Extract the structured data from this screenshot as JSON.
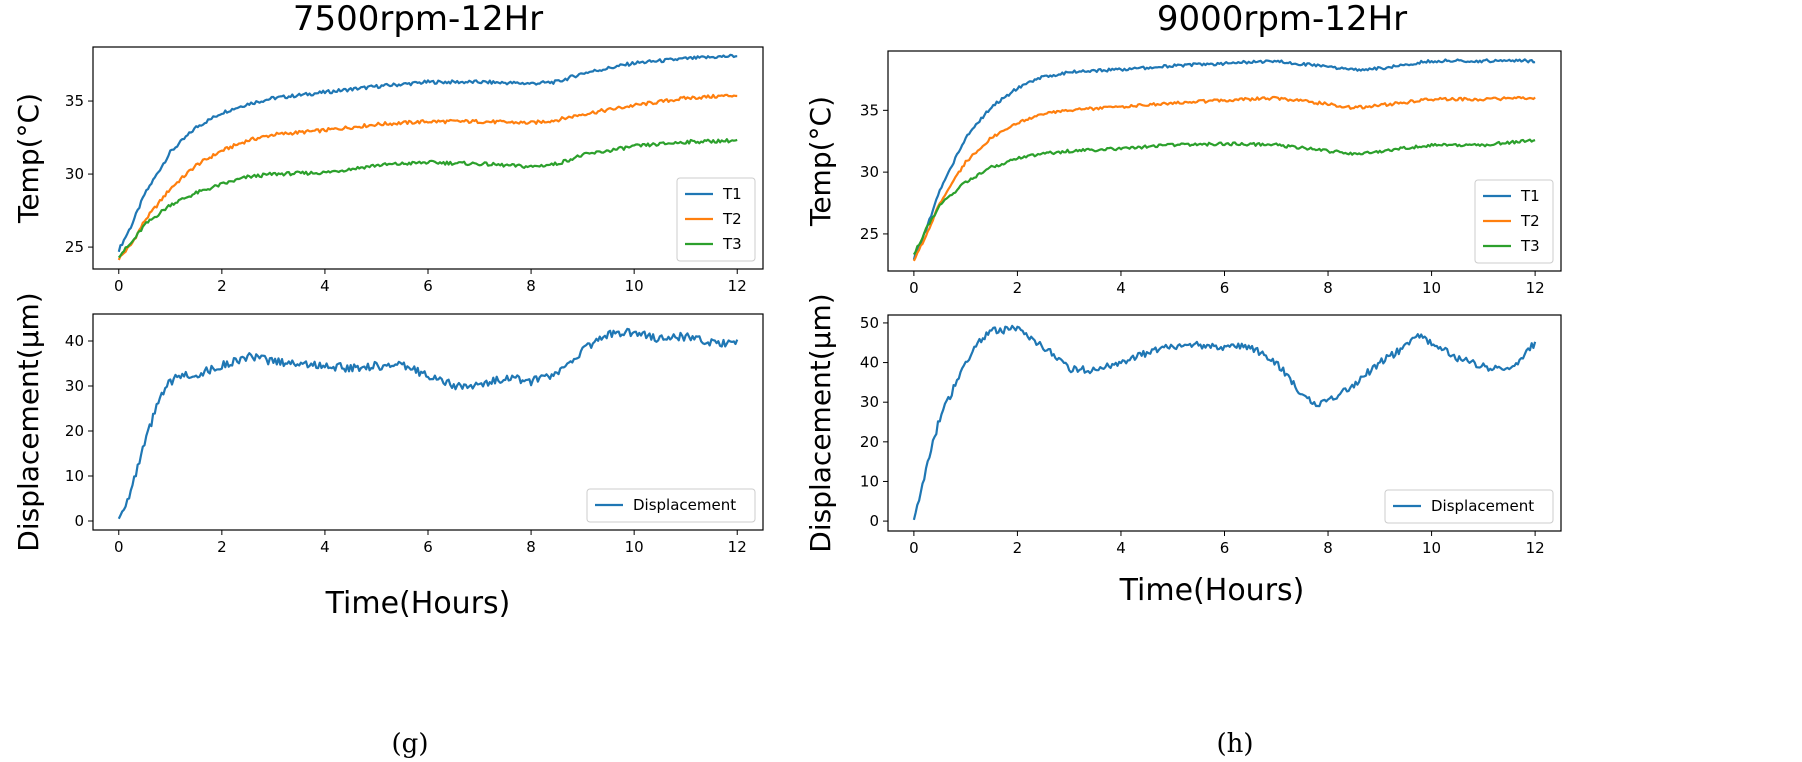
{
  "colors": {
    "t1": "#1f77b4",
    "t2": "#ff7f0e",
    "t3": "#2ca02c",
    "displacement": "#1f77b4"
  },
  "panels": [
    {
      "title": "7500rpm-12Hr",
      "caption": "(g)",
      "xlabel": "Time(Hours)"
    },
    {
      "title": "9000rpm-12Hr",
      "caption": "(h)",
      "xlabel": "Time(Hours)"
    }
  ],
  "chart_data": [
    {
      "type": "line",
      "id": "g-temp",
      "ylabel": "Temp(°C)",
      "xlim": [
        -0.5,
        12.5
      ],
      "ylim": [
        23.5,
        38.7
      ],
      "xticks": [
        0,
        2,
        4,
        6,
        8,
        10,
        12
      ],
      "yticks": [
        25,
        30,
        35
      ],
      "legend": "lower right",
      "series": [
        {
          "name": "T1",
          "color_key": "t1",
          "x": [
            0,
            0.25,
            0.5,
            1,
            1.5,
            2,
            2.5,
            3,
            4,
            5,
            6,
            7,
            8,
            8.5,
            9,
            10,
            11,
            12
          ],
          "y": [
            24.8,
            26.5,
            28.6,
            31.5,
            33.2,
            34.2,
            34.8,
            35.2,
            35.6,
            36.0,
            36.3,
            36.3,
            36.2,
            36.3,
            36.9,
            37.6,
            37.9,
            38.1
          ]
        },
        {
          "name": "T2",
          "color_key": "t2",
          "x": [
            0,
            0.25,
            0.5,
            1,
            1.5,
            2,
            2.5,
            3,
            4,
            5,
            6,
            7,
            8,
            8.5,
            9,
            10,
            11,
            12
          ],
          "y": [
            24.2,
            25.2,
            26.8,
            29.0,
            30.6,
            31.6,
            32.3,
            32.7,
            33.0,
            33.4,
            33.6,
            33.6,
            33.5,
            33.7,
            34.1,
            34.7,
            35.2,
            35.4
          ]
        },
        {
          "name": "T3",
          "color_key": "t3",
          "x": [
            0,
            0.25,
            0.5,
            1,
            1.5,
            2,
            2.5,
            3,
            4,
            5,
            6,
            7,
            8,
            8.5,
            9,
            10,
            11,
            12
          ],
          "y": [
            24.4,
            25.3,
            26.5,
            27.9,
            28.7,
            29.3,
            29.8,
            30.0,
            30.1,
            30.6,
            30.8,
            30.7,
            30.5,
            30.7,
            31.3,
            31.9,
            32.2,
            32.3
          ]
        }
      ]
    },
    {
      "type": "line",
      "id": "g-disp",
      "ylabel": "Displacement(μm)",
      "xlim": [
        -0.5,
        12.5
      ],
      "ylim": [
        -2,
        46
      ],
      "xticks": [
        0,
        2,
        4,
        6,
        8,
        10,
        12
      ],
      "yticks": [
        0,
        10,
        20,
        30,
        40
      ],
      "legend": "lower right",
      "series": [
        {
          "name": "Displacement",
          "color_key": "displacement",
          "x": [
            0,
            0.25,
            0.5,
            0.75,
            1,
            1.25,
            1.5,
            2,
            2.5,
            3,
            3.5,
            4,
            4.5,
            5,
            5.5,
            6,
            6.5,
            7,
            7.5,
            8,
            8.5,
            9,
            9.5,
            10,
            10.5,
            11,
            11.5,
            12
          ],
          "y": [
            0.5,
            7,
            17,
            26,
            31,
            32.5,
            32.5,
            34.5,
            36.5,
            35.5,
            35,
            34.5,
            34,
            34.5,
            34.5,
            32.5,
            30,
            30,
            32,
            31,
            32.5,
            38,
            41.5,
            42,
            40.5,
            41,
            39.5,
            39.5
          ]
        }
      ]
    },
    {
      "type": "line",
      "id": "h-temp",
      "ylabel": "Temp(°C)",
      "xlim": [
        -0.5,
        12.5
      ],
      "ylim": [
        22,
        39.8
      ],
      "xticks": [
        0,
        2,
        4,
        6,
        8,
        10,
        12
      ],
      "yticks": [
        25,
        30,
        35
      ],
      "legend": "lower right",
      "series": [
        {
          "name": "T1",
          "color_key": "t1",
          "x": [
            0,
            0.25,
            0.5,
            1,
            1.5,
            2,
            2.5,
            3,
            4,
            5,
            6,
            7,
            8,
            8.5,
            9,
            10,
            11,
            12
          ],
          "y": [
            23.0,
            25.5,
            28.5,
            32.8,
            35.3,
            36.8,
            37.7,
            38.1,
            38.3,
            38.6,
            38.8,
            39.0,
            38.5,
            38.3,
            38.4,
            39.0,
            39.0,
            39.0
          ]
        },
        {
          "name": "T2",
          "color_key": "t2",
          "x": [
            0,
            0.25,
            0.5,
            1,
            1.5,
            2,
            2.5,
            3,
            4,
            5,
            6,
            7,
            8,
            8.5,
            9,
            10,
            11,
            12
          ],
          "y": [
            22.8,
            25.0,
            27.5,
            30.8,
            32.8,
            34.0,
            34.7,
            35.0,
            35.3,
            35.6,
            35.8,
            36.0,
            35.5,
            35.2,
            35.4,
            35.9,
            35.9,
            36.0
          ]
        },
        {
          "name": "T3",
          "color_key": "t3",
          "x": [
            0,
            0.25,
            0.5,
            1,
            1.5,
            2,
            2.5,
            3,
            4,
            5,
            6,
            7,
            8,
            8.5,
            9,
            10,
            11,
            12
          ],
          "y": [
            23.3,
            25.5,
            27.3,
            29.2,
            30.4,
            31.1,
            31.5,
            31.7,
            31.9,
            32.2,
            32.3,
            32.2,
            31.7,
            31.5,
            31.7,
            32.2,
            32.2,
            32.6
          ]
        }
      ]
    },
    {
      "type": "line",
      "id": "h-disp",
      "ylabel": "Displacement(μm)",
      "xlim": [
        -0.5,
        12.5
      ],
      "ylim": [
        -2.5,
        52
      ],
      "xticks": [
        0,
        2,
        4,
        6,
        8,
        10,
        12
      ],
      "yticks": [
        0,
        10,
        20,
        30,
        40,
        50
      ],
      "legend": "lower right",
      "series": [
        {
          "name": "Displacement",
          "color_key": "displacement",
          "x": [
            0,
            0.25,
            0.5,
            0.75,
            1,
            1.25,
            1.5,
            2,
            2.5,
            3,
            3.5,
            4,
            4.5,
            5,
            5.5,
            6,
            6.5,
            7,
            7.5,
            7.75,
            8,
            8.5,
            9,
            9.5,
            9.75,
            10,
            10.5,
            11,
            11.5,
            12
          ],
          "y": [
            -0.5,
            14,
            26,
            33,
            40,
            45,
            48,
            48.5,
            44,
            38.5,
            38,
            40,
            42.5,
            44,
            44.5,
            44,
            44,
            40,
            32,
            29,
            30,
            34.5,
            40,
            44,
            47,
            45,
            41,
            39,
            38,
            45
          ]
        }
      ]
    }
  ]
}
